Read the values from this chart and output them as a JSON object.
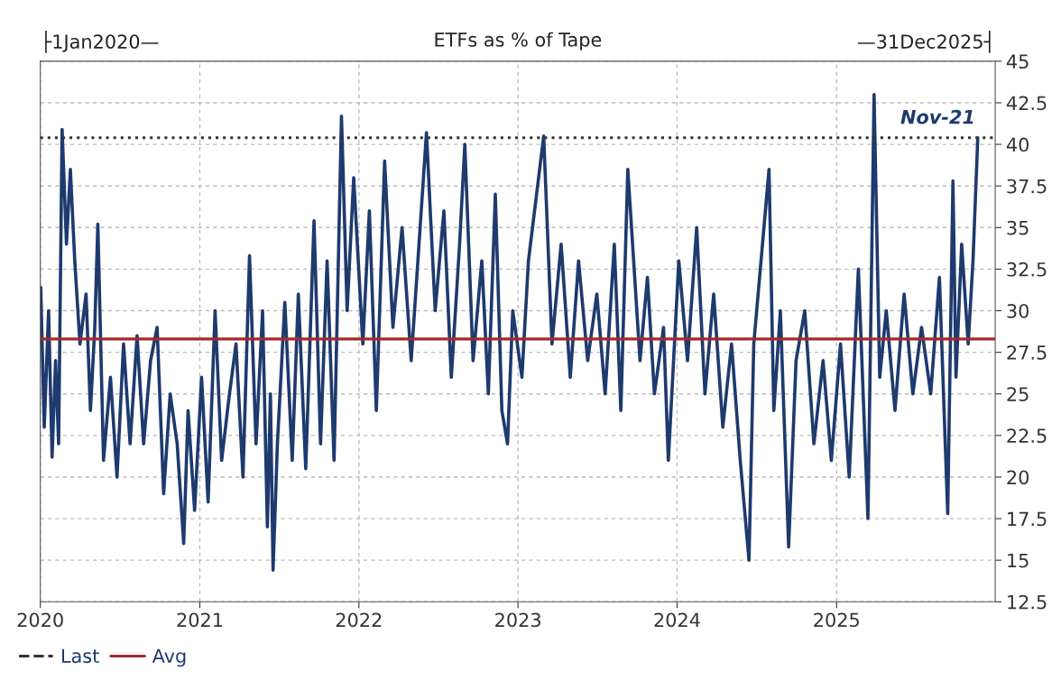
{
  "chart_data": {
    "type": "line",
    "title": "ETFs as % of Tape",
    "x": [
      "2020-01-02",
      "2020-01-10",
      "2020-01-20",
      "2020-01-28",
      "2020-02-05",
      "2020-02-12",
      "2020-02-20",
      "2020-03-01",
      "2020-03-10",
      "2020-03-20",
      "2020-04-01",
      "2020-04-15",
      "2020-04-25",
      "2020-05-05",
      "2020-05-12",
      "2020-05-25",
      "2020-06-10",
      "2020-06-25",
      "2020-07-10",
      "2020-07-25",
      "2020-08-10",
      "2020-08-25",
      "2020-09-10",
      "2020-09-25",
      "2020-10-10",
      "2020-10-25",
      "2020-11-10",
      "2020-11-25",
      "2020-12-05",
      "2020-12-20",
      "2021-01-05",
      "2021-01-20",
      "2021-02-05",
      "2021-02-20",
      "2021-03-10",
      "2021-03-25",
      "2021-04-10",
      "2021-04-25",
      "2021-05-10",
      "2021-05-25",
      "2021-06-05",
      "2021-06-12",
      "2021-06-18",
      "2021-06-28",
      "2021-07-15",
      "2021-08-01",
      "2021-08-15",
      "2021-09-01",
      "2021-09-20",
      "2021-10-05",
      "2021-10-20",
      "2021-11-05",
      "2021-11-22",
      "2021-12-05",
      "2021-12-20",
      "2022-01-10",
      "2022-01-25",
      "2022-02-10",
      "2022-03-01",
      "2022-03-20",
      "2022-04-10",
      "2022-05-01",
      "2022-06-05",
      "2022-06-25",
      "2022-07-15",
      "2022-08-01",
      "2022-08-20",
      "2022-09-01",
      "2022-09-20",
      "2022-10-10",
      "2022-10-25",
      "2022-11-10",
      "2022-11-25",
      "2022-12-08",
      "2022-12-20",
      "2023-01-10",
      "2023-01-25",
      "2023-03-01",
      "2023-03-20",
      "2023-04-10",
      "2023-05-01",
      "2023-05-20",
      "2023-06-10",
      "2023-07-01",
      "2023-07-20",
      "2023-08-10",
      "2023-08-25",
      "2023-09-10",
      "2023-10-08",
      "2023-10-25",
      "2023-11-10",
      "2023-12-01",
      "2023-12-12",
      "2024-01-05",
      "2024-01-25",
      "2024-02-15",
      "2024-03-05",
      "2024-03-25",
      "2024-04-15",
      "2024-05-05",
      "2024-05-25",
      "2024-06-14",
      "2024-06-25",
      "2024-07-30",
      "2024-08-10",
      "2024-08-25",
      "2024-09-13",
      "2024-09-30",
      "2024-10-20",
      "2024-11-10",
      "2024-12-01",
      "2024-12-20",
      "2025-01-10",
      "2025-01-30",
      "2025-02-20",
      "2025-03-14",
      "2025-03-28",
      "2025-04-10",
      "2025-04-25",
      "2025-05-15",
      "2025-06-05",
      "2025-06-25",
      "2025-07-15",
      "2025-08-05",
      "2025-08-25",
      "2025-09-13",
      "2025-09-25",
      "2025-10-02",
      "2025-10-15",
      "2025-10-30",
      "2025-11-10",
      "2025-11-21"
    ],
    "series": [
      {
        "color": "#1e3a6e",
        "values": [
          31.4,
          23,
          30,
          21.2,
          27,
          22,
          40.9,
          34,
          38.5,
          33,
          28,
          31,
          24,
          29,
          35.2,
          21,
          26,
          20,
          28,
          22,
          28.5,
          22,
          27,
          29,
          19,
          25,
          22,
          16,
          24,
          18,
          26,
          18.5,
          30,
          21,
          25,
          28,
          20,
          33.3,
          22,
          30,
          17,
          25,
          14.4,
          22,
          30.5,
          21,
          31,
          20.5,
          35.4,
          22,
          33,
          21,
          41.7,
          30,
          38,
          28,
          36,
          24,
          39,
          29,
          35,
          27,
          40.7,
          30,
          36,
          26,
          34,
          40,
          27,
          33,
          25,
          37,
          24,
          22,
          30,
          26,
          33,
          40.5,
          28,
          34,
          26,
          33,
          27,
          31,
          25,
          34,
          24,
          38.5,
          27,
          32,
          25,
          29,
          21,
          33,
          27,
          35,
          25,
          31,
          23,
          28,
          21,
          15,
          28,
          38.5,
          24,
          30,
          15.8,
          27,
          30,
          22,
          27,
          21,
          28,
          20,
          32.5,
          17.5,
          43,
          26,
          30,
          24,
          31,
          25,
          29,
          25,
          32,
          17.8,
          37.8,
          26,
          34,
          28,
          33,
          40.4
        ]
      }
    ],
    "xlim": [
      "2020-01-01",
      "2025-12-31"
    ],
    "xticks": [
      {
        "value": "2020-01-01",
        "label": "2020"
      },
      {
        "value": "2021-01-01",
        "label": "2021"
      },
      {
        "value": "2022-01-01",
        "label": "2022"
      },
      {
        "value": "2023-01-01",
        "label": "2023"
      },
      {
        "value": "2024-01-01",
        "label": "2024"
      },
      {
        "value": "2025-01-01",
        "label": "2025"
      }
    ],
    "ylim": [
      12.5,
      45
    ],
    "yticks": [
      12.5,
      15,
      17.5,
      20,
      22.5,
      25,
      27.5,
      30,
      32.5,
      35,
      37.5,
      40,
      42.5,
      45
    ],
    "ref_lines": [
      {
        "axis": "y",
        "value": 40.4,
        "label": "Last",
        "color": "#333333",
        "line_style": "dotted"
      },
      {
        "axis": "y",
        "value": 28.3,
        "label": "Avg",
        "color": "#a52a2a",
        "line_style": "solid"
      }
    ],
    "annotations": [
      "├1Jan2020—",
      "—31Dec2025┤",
      {
        "text": "Nov-21",
        "x": "2025-11-21",
        "y": 40.4
      }
    ],
    "grid": true,
    "legend": "bottom left"
  }
}
